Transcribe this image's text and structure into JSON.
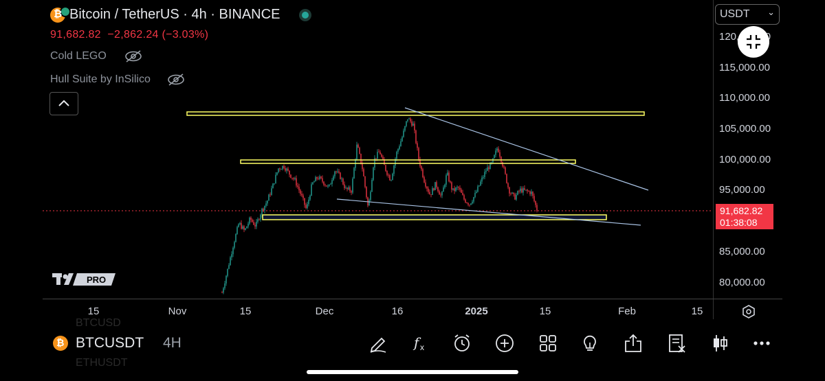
{
  "header": {
    "title": "Bitcoin / TetherUS · 4h · BINANCE",
    "price": "91,682.82",
    "change": "−2,862.24 (−3.03%)",
    "indicators": [
      {
        "label": "Cold LEGO",
        "icon": "eye-off-icon"
      },
      {
        "label": "Hull Suite by InSilico",
        "icon": "eye-off-icon"
      }
    ],
    "collapse_icon": "chevron-up-icon"
  },
  "axis": {
    "currency": "USDT",
    "y_ticks": [
      "120,000.00",
      "115,000.00",
      "110,000.00",
      "105,000.00",
      "100,000.00",
      "95,000.00",
      "85,000.00",
      "80,000.00"
    ],
    "current_price": "91,682.82",
    "countdown": "01:38:08",
    "x_ticks": [
      "15",
      "Nov",
      "15",
      "Dec",
      "16",
      "2025",
      "15",
      "Feb",
      "15"
    ]
  },
  "colors": {
    "up": "#26a69a",
    "down": "#f23645",
    "zone_yellow": "#ffff66",
    "trendline": "#aac4e6"
  },
  "watermark": "PRO",
  "symbol_bar": {
    "symbol": "BTCUSDT",
    "timeframe": "4H",
    "ghost_above": "BTCUSD",
    "ghost_below": "ETHUSDT",
    "tools": [
      "draw-icon",
      "indicators-icon",
      "alert-icon",
      "add-icon",
      "layouts-icon",
      "ideas-icon",
      "share-icon",
      "order-icon",
      "chart-type-icon",
      "more-icon"
    ]
  },
  "chart_data": {
    "type": "candlestick",
    "symbol": "BTCUSDT",
    "interval": "4h",
    "ylim": [
      78000,
      122000
    ],
    "close": [
      [
        0,
        78200
      ],
      [
        2,
        82000
      ],
      [
        4,
        86000
      ],
      [
        6,
        89500
      ],
      [
        8,
        88200
      ],
      [
        10,
        90200
      ],
      [
        12,
        89000
      ],
      [
        14,
        91500
      ],
      [
        16,
        93000
      ],
      [
        18,
        95500
      ],
      [
        20,
        98400
      ],
      [
        22,
        98800
      ],
      [
        24,
        97500
      ],
      [
        26,
        96400
      ],
      [
        28,
        94200
      ],
      [
        30,
        91700
      ],
      [
        32,
        95800
      ],
      [
        34,
        97000
      ],
      [
        36,
        96200
      ],
      [
        38,
        95200
      ],
      [
        40,
        98100
      ],
      [
        42,
        97100
      ],
      [
        44,
        95000
      ],
      [
        46,
        94800
      ],
      [
        48,
        102300
      ],
      [
        50,
        98200
      ],
      [
        52,
        91800
      ],
      [
        54,
        99700
      ],
      [
        56,
        101200
      ],
      [
        58,
        98400
      ],
      [
        60,
        96500
      ],
      [
        62,
        100800
      ],
      [
        64,
        103400
      ],
      [
        66,
        106600
      ],
      [
        68,
        105500
      ],
      [
        70,
        99800
      ],
      [
        72,
        96300
      ],
      [
        74,
        94100
      ],
      [
        76,
        95900
      ],
      [
        78,
        93700
      ],
      [
        80,
        97600
      ],
      [
        82,
        94700
      ],
      [
        84,
        95300
      ],
      [
        86,
        93400
      ],
      [
        88,
        92600
      ],
      [
        90,
        94100
      ],
      [
        92,
        96200
      ],
      [
        94,
        98200
      ],
      [
        96,
        99200
      ],
      [
        98,
        101900
      ],
      [
        100,
        98700
      ],
      [
        102,
        94900
      ],
      [
        104,
        93600
      ],
      [
        106,
        94900
      ],
      [
        108,
        94700
      ],
      [
        110,
        94500
      ],
      [
        112,
        91700
      ]
    ],
    "x_start": "2024-11-09",
    "x_end": "2025-01-13",
    "lines": {
      "resistance_zone_top": 107400,
      "range_zone": 99600,
      "support_zone": 90700,
      "falling_trendline": [
        [
          108200,
          "2024-12-17"
        ],
        [
          94500,
          "2025-01-30"
        ]
      ],
      "lower_trendline": [
        [
          93200,
          "2024-12-02"
        ],
        [
          89100,
          "2025-01-30"
        ]
      ]
    }
  }
}
